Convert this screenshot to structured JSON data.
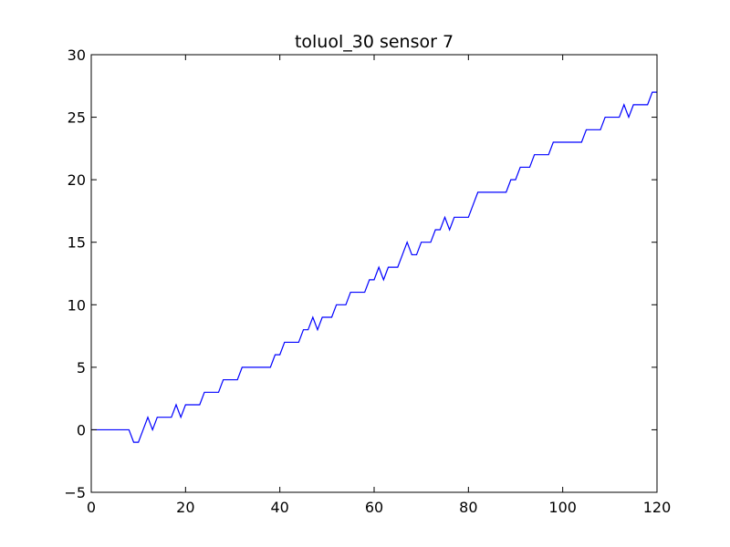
{
  "chart_data": {
    "type": "line",
    "title": "toluol_30 sensor 7",
    "xlabel": "",
    "ylabel": "",
    "xlim": [
      0,
      120
    ],
    "ylim": [
      -5,
      30
    ],
    "x_ticks": [
      "0",
      "20",
      "40",
      "60",
      "80",
      "100",
      "120"
    ],
    "y_ticks": [
      "−5",
      "0",
      "5",
      "10",
      "15",
      "20",
      "25",
      "30"
    ],
    "grid": false,
    "series": [
      {
        "color": "#0000ff",
        "x": [
          0,
          1,
          2,
          3,
          4,
          5,
          6,
          7,
          8,
          9,
          10,
          11,
          12,
          13,
          14,
          15,
          16,
          17,
          18,
          19,
          20,
          21,
          22,
          23,
          24,
          25,
          26,
          27,
          28,
          29,
          30,
          31,
          32,
          33,
          34,
          35,
          36,
          37,
          38,
          39,
          40,
          41,
          42,
          43,
          44,
          45,
          46,
          47,
          48,
          49,
          50,
          51,
          52,
          53,
          54,
          55,
          56,
          57,
          58,
          59,
          60,
          61,
          62,
          63,
          64,
          65,
          66,
          67,
          68,
          69,
          70,
          71,
          72,
          73,
          74,
          75,
          76,
          77,
          78,
          79,
          80,
          81,
          82,
          83,
          84,
          85,
          86,
          87,
          88,
          89,
          90,
          91,
          92,
          93,
          94,
          95,
          96,
          97,
          98,
          99,
          100,
          101,
          102,
          103,
          104,
          105,
          106,
          107,
          108,
          109,
          110,
          111,
          112,
          113,
          114,
          115,
          116,
          117,
          118,
          119,
          120
        ],
        "y": [
          0,
          0,
          0,
          0,
          0,
          0,
          0,
          0,
          0,
          -1,
          -1,
          0,
          1,
          0,
          1,
          1,
          1,
          1,
          2,
          1,
          2,
          2,
          2,
          2,
          3,
          3,
          3,
          3,
          4,
          4,
          4,
          4,
          5,
          5,
          5,
          5,
          5,
          5,
          5,
          6,
          6,
          7,
          7,
          7,
          7,
          8,
          8,
          9,
          8,
          9,
          9,
          9,
          10,
          10,
          10,
          11,
          11,
          11,
          11,
          12,
          12,
          13,
          12,
          13,
          13,
          13,
          14,
          15,
          14,
          14,
          15,
          15,
          15,
          16,
          16,
          17,
          16,
          17,
          17,
          17,
          17,
          18,
          19,
          19,
          19,
          19,
          19,
          19,
          19,
          20,
          20,
          21,
          21,
          21,
          22,
          22,
          22,
          22,
          23,
          23,
          23,
          23,
          23,
          23,
          23,
          24,
          24,
          24,
          24,
          25,
          25,
          25,
          25,
          26,
          25,
          26,
          26,
          26,
          26,
          27,
          27
        ]
      }
    ]
  }
}
